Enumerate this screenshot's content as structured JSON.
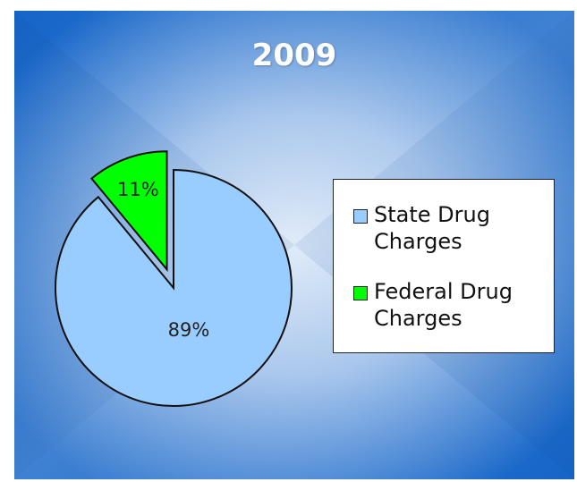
{
  "chart_data": {
    "type": "pie",
    "title": "2009",
    "slices": [
      {
        "label": "State Drug Charges",
        "value": 89,
        "display": "89%",
        "color": "#99ccff",
        "exploded": false
      },
      {
        "label": "Federal Drug Charges",
        "value": 11,
        "display": "11%",
        "color": "#00ff00",
        "exploded": true
      }
    ],
    "legend_position": "right",
    "background": {
      "center": "#cfe0f5",
      "edge": "#1565c8"
    }
  }
}
